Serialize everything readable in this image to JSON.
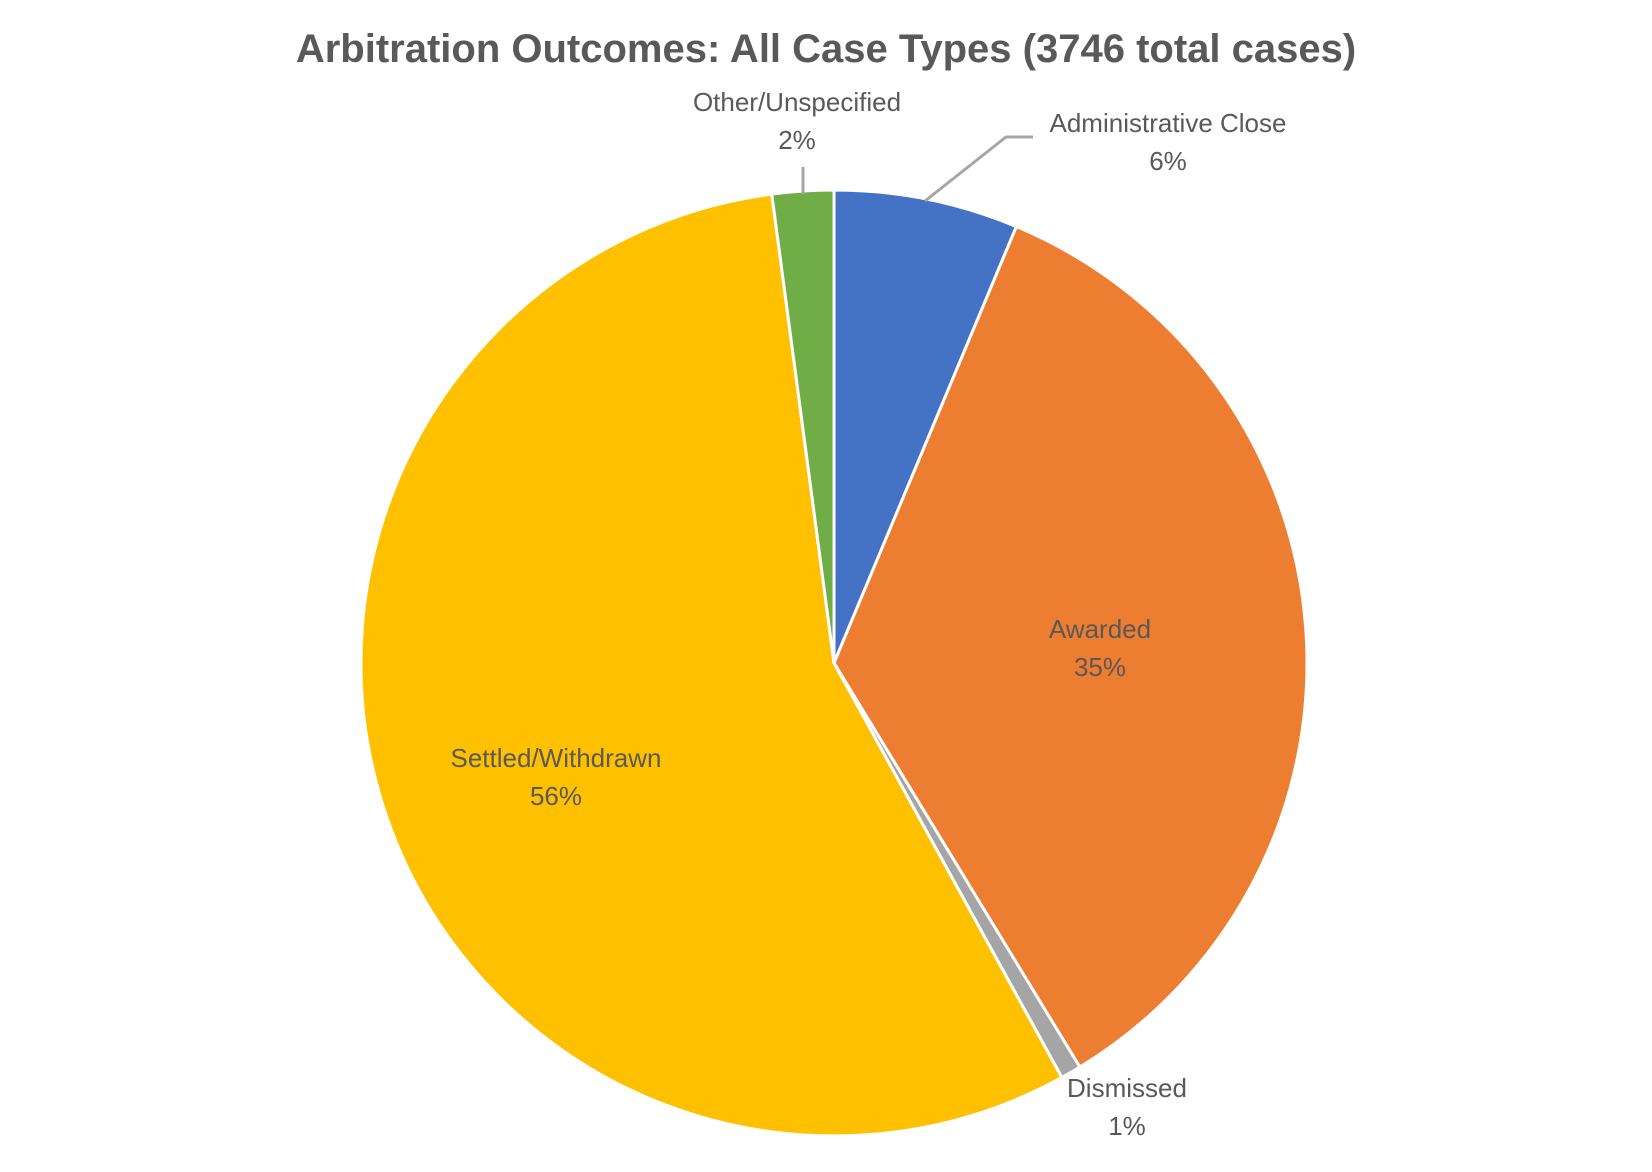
{
  "chart_data": {
    "type": "pie",
    "title": "Arbitration Outcomes: All Case Types (3746 total cases)",
    "categories": [
      "Administrative Close",
      "Awarded",
      "Dismissed",
      "Settled/Withdrawn",
      "Other/Unspecified"
    ],
    "values": [
      6.3,
      35.0,
      0.7,
      55.9,
      2.1
    ],
    "percent_labels": [
      "6%",
      "35%",
      "1%",
      "56%",
      "2%"
    ],
    "colors": [
      "#4472C4",
      "#ED7D31",
      "#A5A5A5",
      "#FFC000",
      "#70AD47"
    ],
    "start_angle_deg": 0,
    "direction": "clockwise",
    "legend": "none",
    "data_labels": "category name and percentage"
  }
}
